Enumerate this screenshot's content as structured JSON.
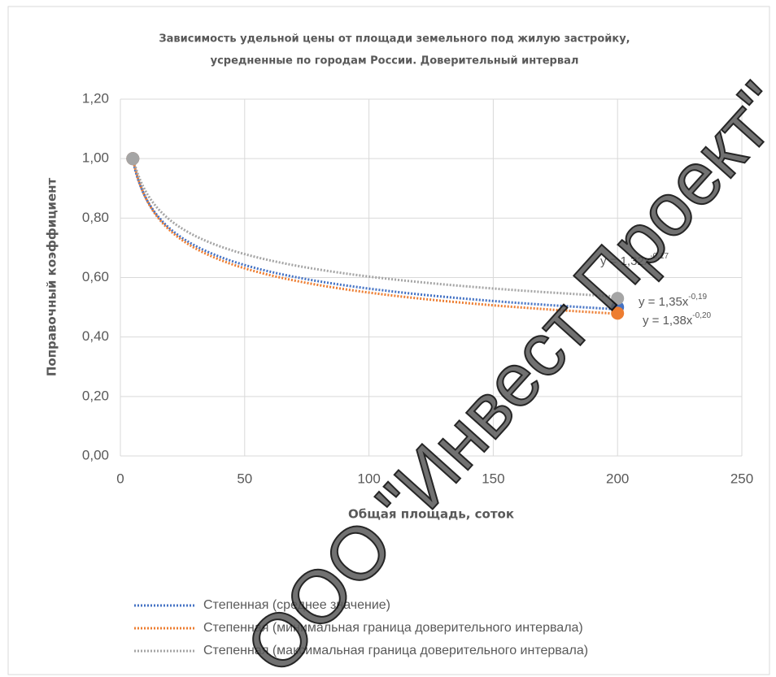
{
  "chart_data": {
    "type": "scatter",
    "title": [
      "Зависимость удельной цены от площади земельного под жилую застройку,",
      "усредненные по городам России. Доверительный интервал"
    ],
    "x_label": "Общая площадь, соток",
    "y_label": "Поправочный коэффициент",
    "xlim": [
      0,
      250
    ],
    "xticks": [
      0,
      50,
      100,
      150,
      200,
      250
    ],
    "ylim": [
      0,
      1.2
    ],
    "yticks": [
      {
        "value": 0,
        "label": "0,00"
      },
      {
        "value": 0.2,
        "label": "0,20"
      },
      {
        "value": 0.4,
        "label": "0,40"
      },
      {
        "value": 0.6,
        "label": "0,60"
      },
      {
        "value": 0.8,
        "label": "0,80"
      },
      {
        "value": 1.0,
        "label": "1,00"
      },
      {
        "value": 1.2,
        "label": "1,20"
      }
    ],
    "grid": true,
    "points": [
      {
        "color": "#4472c4",
        "x": [
          5,
          200
        ],
        "values": [
          1.0,
          0.5
        ]
      },
      {
        "color": "#ed7d31",
        "x": [
          5,
          200
        ],
        "values": [
          1.0,
          0.48
        ]
      },
      {
        "color": "#a5a5a5",
        "x": [
          5,
          200
        ],
        "values": [
          1.0,
          0.53
        ]
      }
    ],
    "trendlines": [
      {
        "name": "Степенная (среднее значение)",
        "color": "#4472c4",
        "a": 1.35,
        "b": -0.19,
        "equation": "y = 1,35x",
        "exponent": "-0,19"
      },
      {
        "name": "Степенная (минимальная граница доверительного интервала)",
        "color": "#ed7d31",
        "a": 1.38,
        "b": -0.2,
        "equation": "y = 1,38x",
        "exponent": "-0,20"
      },
      {
        "name": "Степенная (максимальная граница доверительного интервала)",
        "color": "#a5a5a5",
        "a": 1.32,
        "b": -0.17,
        "equation": "y = 1,32x",
        "exponent": "-0,17"
      }
    ],
    "trend_range": [
      5,
      200
    ],
    "watermark": "ООО \"Инвест Проект\""
  }
}
